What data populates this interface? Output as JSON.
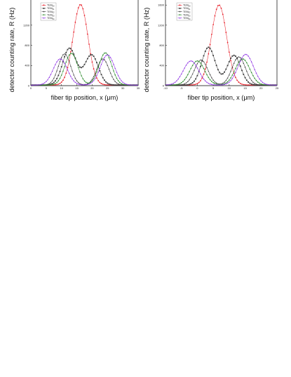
{
  "chart_data": [
    {
      "type": "line",
      "xlabel": "fiber tip position, x (μm)",
      "ylabel": "detector counting rate, R (Hz)",
      "xlim": [
        0,
        35
      ],
      "ylim": [
        0,
        1700
      ],
      "xticks": [
        0,
        5,
        10,
        15,
        20,
        25,
        30,
        35
      ],
      "yticks": [
        0,
        400,
        800,
        1200
      ],
      "legend_position": "top-left",
      "series": [
        {
          "name": "TEM00",
          "legend_base": "TEM",
          "legend_sub": "00",
          "color": "#e8202a",
          "peaks": [
            {
              "center": 16.2,
              "amp": 1600,
              "sigma": 2.4
            }
          ]
        },
        {
          "name": "TEM01",
          "legend_base": "TEM",
          "legend_sub": "01",
          "color": "#3a3a3a",
          "peaks": [
            {
              "center": 12.6,
              "amp": 730,
              "sigma": 2.2
            },
            {
              "center": 19.8,
              "amp": 600,
              "sigma": 2.2
            }
          ]
        },
        {
          "name": "TEM02",
          "legend_base": "TEM",
          "legend_sub": "02",
          "color": "#3a3a3a",
          "peaks": [
            {
              "center": 11.0,
              "amp": 620,
              "sigma": 2.0
            },
            {
              "center": 23.5,
              "amp": 520,
              "sigma": 2.0
            }
          ]
        },
        {
          "name": "TEM03",
          "legend_base": "TEM",
          "legend_sub": "03",
          "color": "#2a8a2a",
          "peaks": [
            {
              "center": 13.2,
              "amp": 630,
              "sigma": 2.1
            },
            {
              "center": 24.3,
              "amp": 640,
              "sigma": 2.1
            }
          ]
        },
        {
          "name": "TEM04",
          "legend_base": "TEM",
          "legend_sub": "04",
          "color": "#8a2be2",
          "peaks": [
            {
              "center": 9.6,
              "amp": 520,
              "sigma": 2.3
            },
            {
              "center": 25.0,
              "amp": 600,
              "sigma": 2.3
            }
          ]
        }
      ]
    },
    {
      "type": "line",
      "xlabel": "fiber tip position, x (μm)",
      "ylabel": "detector counting rate, R (Hz)",
      "xlim": [
        -10,
        25
      ],
      "ylim": [
        0,
        1700
      ],
      "xticks": [
        -10,
        -5,
        0,
        5,
        10,
        15,
        20,
        25
      ],
      "yticks": [
        0,
        400,
        800,
        1200,
        1600
      ],
      "legend_position": "top-left",
      "series": [
        {
          "name": "TEM00",
          "legend_base": "TEM",
          "legend_sub": "00",
          "color": "#e8202a",
          "peaks": [
            {
              "center": 6.8,
              "amp": 1590,
              "sigma": 2.4
            }
          ]
        },
        {
          "name": "TEM01",
          "legend_base": "TEM",
          "legend_sub": "01",
          "color": "#3a3a3a",
          "peaks": [
            {
              "center": 3.5,
              "amp": 750,
              "sigma": 2.1
            },
            {
              "center": 11.5,
              "amp": 590,
              "sigma": 2.1
            }
          ]
        },
        {
          "name": "TEM02",
          "legend_base": "TEM",
          "legend_sub": "02",
          "color": "#3a3a3a",
          "peaks": [
            {
              "center": 1.2,
              "amp": 500,
              "sigma": 2.1
            },
            {
              "center": 13.0,
              "amp": 560,
              "sigma": 2.1
            }
          ]
        },
        {
          "name": "TEM03",
          "legend_base": "TEM",
          "legend_sub": "03",
          "color": "#2a8a2a",
          "peaks": [
            {
              "center": 0.0,
              "amp": 480,
              "sigma": 2.3
            },
            {
              "center": 14.2,
              "amp": 520,
              "sigma": 2.3
            }
          ]
        },
        {
          "name": "TEM04",
          "legend_base": "TEM",
          "legend_sub": "04",
          "color": "#8a2be2",
          "peaks": [
            {
              "center": -2.0,
              "amp": 480,
              "sigma": 2.4
            },
            {
              "center": 15.2,
              "amp": 610,
              "sigma": 2.4
            }
          ]
        }
      ]
    }
  ]
}
